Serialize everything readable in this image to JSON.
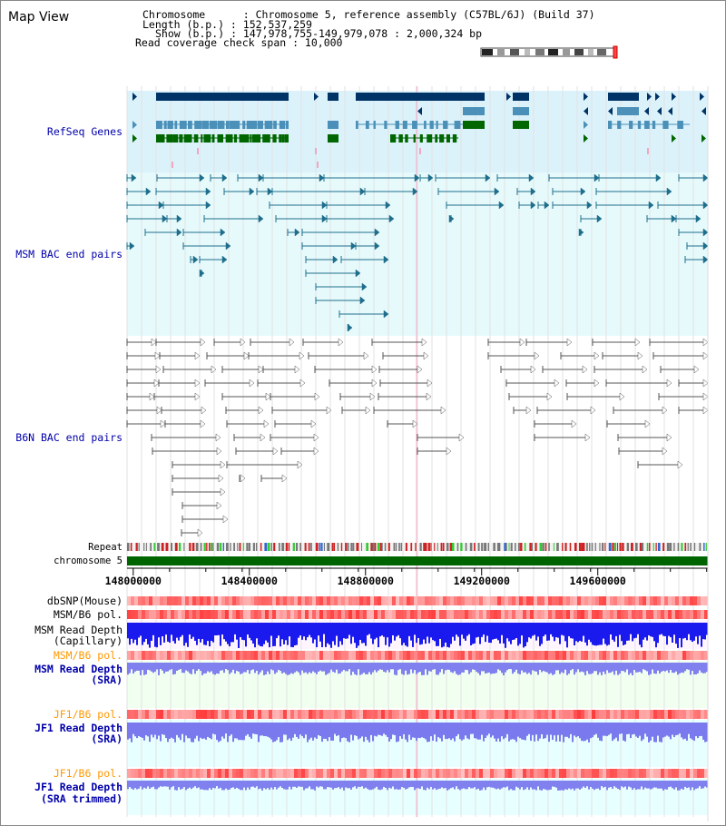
{
  "window_title": "Map View",
  "info": {
    "chromosome_label": "Chromosome      : Chromosome 5, reference assembly (C57BL/6J) (Build 37)",
    "length_label": "Length (b.p.) : 152,537,259",
    "show_label": "Show (b.p.) : 147,978,755-149,979,078 : 2,000,324 bp",
    "coverage_label": "Read coverage check span : 10,000"
  },
  "tracks": {
    "refseq": "RefSeq Genes",
    "msm_bac": "MSM BAC end pairs",
    "b6n_bac": "B6N BAC end pairs",
    "repeat": "Repeat",
    "chromosome": "chromosome 5",
    "dbsnp": "dbSNP(Mouse)",
    "msm_b6_pol": "MSM/B6 pol.",
    "msm_depth_cap_1": "MSM Read Depth",
    "msm_depth_cap_2": "(Capillary)",
    "msm_b6_pol_sra": "MSM/B6 pol.",
    "msm_depth_sra_1": "MSM Read Depth",
    "msm_depth_sra_2": "(SRA)",
    "jf1_b6_pol": "JF1/B6 pol.",
    "jf1_depth_1": "JF1 Read Depth",
    "jf1_depth_2": "(SRA)",
    "jf1_b6_pol_trim": "JF1/B6 pol.",
    "jf1_depth_trim_1": "JF1 Read Depth",
    "jf1_depth_trim_2": "(SRA trimmed)"
  },
  "axis": {
    "ticks": [
      "148000000",
      "148400000",
      "148800000",
      "149200000",
      "149600000"
    ]
  },
  "colors": {
    "refseq_bg": "#dcf2fb",
    "msm_bg": "#e6fafc",
    "gene_dark": "#003366",
    "gene_mid": "#4a90b8",
    "gene_green": "#006600",
    "msm_line": "#1e6e8c",
    "b6n_line": "#555555",
    "chrom_green": "#006400",
    "snp_red": "#ff4444",
    "depth_blue": "#2222ee",
    "depth_light": "#7777ee",
    "label_blue": "#0000aa",
    "label_orange": "#ff9900"
  }
}
